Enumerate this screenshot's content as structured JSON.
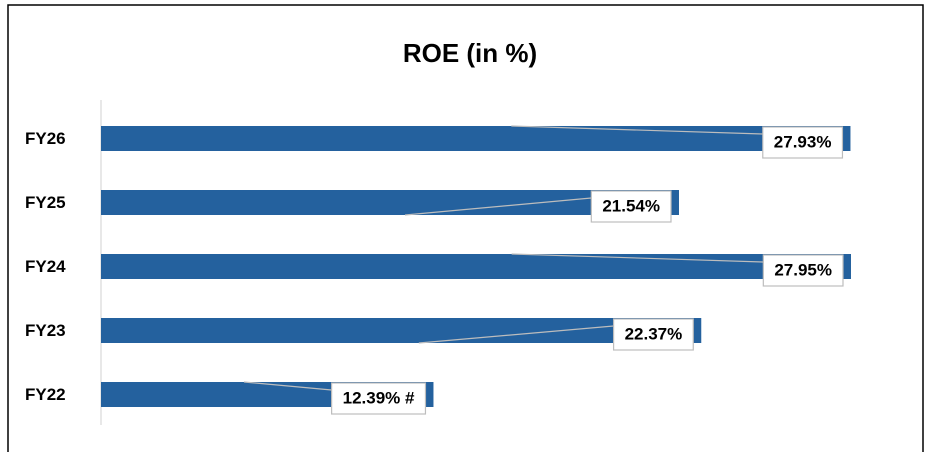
{
  "chart_data": {
    "type": "bar",
    "orientation": "horizontal",
    "title": "ROE (in %)",
    "categories": [
      "FY26",
      "FY25",
      "FY24",
      "FY23",
      "FY22"
    ],
    "values": [
      27.93,
      21.54,
      27.95,
      22.37,
      12.39
    ],
    "value_labels": [
      "27.93%",
      "21.54%",
      "27.95%",
      "22.37%",
      "12.39% #"
    ],
    "color": "#24619e",
    "xlim": [
      0,
      30
    ]
  }
}
